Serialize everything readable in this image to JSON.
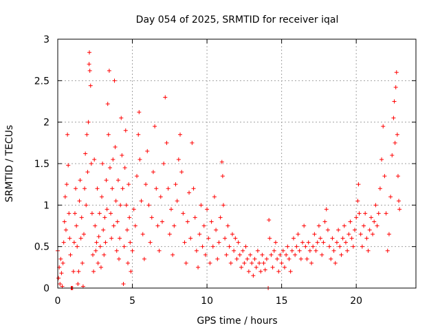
{
  "chart_data": {
    "type": "scatter",
    "title": "Day 054 of 2025, SRMTID for receiver iqal",
    "xlabel": "GPS time / hours",
    "ylabel": "SRMTID / TECUs",
    "xlim": [
      0,
      24
    ],
    "ylim": [
      0,
      3
    ],
    "xticks": [
      0,
      5,
      10,
      15,
      20
    ],
    "xtick_labels": [
      "0",
      "5",
      "10",
      "15",
      "20"
    ],
    "yticks": [
      0,
      0.5,
      1,
      1.5,
      2,
      2.5,
      3
    ],
    "ytick_labels": [
      "0",
      "0.5",
      "1",
      "1.5",
      "2",
      "2.5",
      "3"
    ],
    "grid": true,
    "marker": "plus",
    "series": [
      {
        "name": "SRMTID",
        "color": "#ff0000",
        "points": [
          [
            0.0,
            0.45
          ],
          [
            0.05,
            0.12
          ],
          [
            0.1,
            0.25
          ],
          [
            0.15,
            0.05
          ],
          [
            0.2,
            0.35
          ],
          [
            0.25,
            0.18
          ],
          [
            0.3,
            0.02
          ],
          [
            0.35,
            0.3
          ],
          [
            0.4,
            0.55
          ],
          [
            0.45,
            0.8
          ],
          [
            0.5,
            1.1
          ],
          [
            0.55,
            0.7
          ],
          [
            0.6,
            1.25
          ],
          [
            0.65,
            1.85
          ],
          [
            0.7,
            1.48
          ],
          [
            0.75,
            0.9
          ],
          [
            0.8,
            0.6
          ],
          [
            0.85,
            0.4
          ],
          [
            0.9,
            0.0
          ],
          [
            0.95,
            0.0
          ],
          [
            1.0,
            0.0
          ],
          [
            1.05,
            0.2
          ],
          [
            1.1,
            0.55
          ],
          [
            1.15,
            0.9
          ],
          [
            1.2,
            1.2
          ],
          [
            1.25,
            0.75
          ],
          [
            1.3,
            0.5
          ],
          [
            1.35,
            0.05
          ],
          [
            1.4,
            0.2
          ],
          [
            1.45,
            1.05
          ],
          [
            1.5,
            1.3
          ],
          [
            1.55,
            0.6
          ],
          [
            1.6,
            0.85
          ],
          [
            1.65,
            0.3
          ],
          [
            1.7,
            0.02
          ],
          [
            1.75,
            0.65
          ],
          [
            1.8,
            1.2
          ],
          [
            1.85,
            1.62
          ],
          [
            1.9,
            1.0
          ],
          [
            1.95,
            1.85
          ],
          [
            2.0,
            1.4
          ],
          [
            2.05,
            2.0
          ],
          [
            2.1,
            2.7
          ],
          [
            2.12,
            2.84
          ],
          [
            2.15,
            2.62
          ],
          [
            2.2,
            2.44
          ],
          [
            2.25,
            1.5
          ],
          [
            2.3,
            0.9
          ],
          [
            2.35,
            0.4
          ],
          [
            2.4,
            0.2
          ],
          [
            2.45,
            1.55
          ],
          [
            2.5,
            0.75
          ],
          [
            2.55,
            0.45
          ],
          [
            2.6,
            0.55
          ],
          [
            2.65,
            1.2
          ],
          [
            2.7,
            0.3
          ],
          [
            2.75,
            0.62
          ],
          [
            2.8,
            0.9
          ],
          [
            2.85,
            0.5
          ],
          [
            2.9,
            0.25
          ],
          [
            2.95,
            1.1
          ],
          [
            3.0,
            1.5
          ],
          [
            3.05,
            0.7
          ],
          [
            3.1,
            0.4
          ],
          [
            3.15,
            0.85
          ],
          [
            3.2,
            0.55
          ],
          [
            3.25,
            1.3
          ],
          [
            3.3,
            0.95
          ],
          [
            3.35,
            2.22
          ],
          [
            3.4,
            1.85
          ],
          [
            3.45,
            2.62
          ],
          [
            3.5,
            1.45
          ],
          [
            3.55,
            0.9
          ],
          [
            3.6,
            0.6
          ],
          [
            3.65,
            1.2
          ],
          [
            3.7,
            1.55
          ],
          [
            3.75,
            0.75
          ],
          [
            3.8,
            2.5
          ],
          [
            3.85,
            1.7
          ],
          [
            3.9,
            1.05
          ],
          [
            3.95,
            0.45
          ],
          [
            4.0,
            0.8
          ],
          [
            4.05,
            1.3
          ],
          [
            4.1,
            0.35
          ],
          [
            4.15,
            0.6
          ],
          [
            4.2,
            1.0
          ],
          [
            4.25,
            2.05
          ],
          [
            4.3,
            1.6
          ],
          [
            4.35,
            1.2
          ],
          [
            4.4,
            0.05
          ],
          [
            4.45,
            0.5
          ],
          [
            4.5,
            1.45
          ],
          [
            4.55,
            1.9
          ],
          [
            4.6,
            1.0
          ],
          [
            4.65,
            0.7
          ],
          [
            4.7,
            0.3
          ],
          [
            4.75,
            1.25
          ],
          [
            4.8,
            0.85
          ],
          [
            4.85,
            0.55
          ],
          [
            4.9,
            0.2
          ],
          [
            5.0,
            0.45
          ],
          [
            5.1,
            0.95
          ],
          [
            5.2,
            0.75
          ],
          [
            5.3,
            1.35
          ],
          [
            5.4,
            1.85
          ],
          [
            5.45,
            2.12
          ],
          [
            5.5,
            1.55
          ],
          [
            5.6,
            1.05
          ],
          [
            5.7,
            0.65
          ],
          [
            5.8,
            0.35
          ],
          [
            5.9,
            1.25
          ],
          [
            6.0,
            1.65
          ],
          [
            6.1,
            1.0
          ],
          [
            6.2,
            0.55
          ],
          [
            6.3,
            0.85
          ],
          [
            6.4,
            1.4
          ],
          [
            6.5,
            1.95
          ],
          [
            6.6,
            1.2
          ],
          [
            6.7,
            0.75
          ],
          [
            6.8,
            0.45
          ],
          [
            6.9,
            1.1
          ],
          [
            7.0,
            0.8
          ],
          [
            7.1,
            1.5
          ],
          [
            7.2,
            2.3
          ],
          [
            7.3,
            1.75
          ],
          [
            7.4,
            1.2
          ],
          [
            7.5,
            0.65
          ],
          [
            7.6,
            0.95
          ],
          [
            7.7,
            0.4
          ],
          [
            7.8,
            0.75
          ],
          [
            7.9,
            1.25
          ],
          [
            8.0,
            1.05
          ],
          [
            8.1,
            1.55
          ],
          [
            8.2,
            1.85
          ],
          [
            8.3,
            1.4
          ],
          [
            8.4,
            0.9
          ],
          [
            8.5,
            0.55
          ],
          [
            8.6,
            0.3
          ],
          [
            8.7,
            0.8
          ],
          [
            8.8,
            1.15
          ],
          [
            8.9,
            0.6
          ],
          [
            9.0,
            1.75
          ],
          [
            9.1,
            1.2
          ],
          [
            9.2,
            0.85
          ],
          [
            9.3,
            0.45
          ],
          [
            9.4,
            0.25
          ],
          [
            9.5,
            0.65
          ],
          [
            9.6,
            1.0
          ],
          [
            9.7,
            0.5
          ],
          [
            9.8,
            0.75
          ],
          [
            9.9,
            0.4
          ],
          [
            10.0,
            0.95
          ],
          [
            10.1,
            0.6
          ],
          [
            10.2,
            0.3
          ],
          [
            10.3,
            0.8
          ],
          [
            10.4,
            0.5
          ],
          [
            10.5,
            1.1
          ],
          [
            10.6,
            0.7
          ],
          [
            10.7,
            0.35
          ],
          [
            10.8,
            0.55
          ],
          [
            10.9,
            0.85
          ],
          [
            11.0,
            1.52
          ],
          [
            11.05,
            1.35
          ],
          [
            11.1,
            1.0
          ],
          [
            11.2,
            0.6
          ],
          [
            11.3,
            0.4
          ],
          [
            11.4,
            0.75
          ],
          [
            11.5,
            0.5
          ],
          [
            11.6,
            0.3
          ],
          [
            11.7,
            0.65
          ],
          [
            11.8,
            0.45
          ],
          [
            11.9,
            0.6
          ],
          [
            12.0,
            0.35
          ],
          [
            12.1,
            0.55
          ],
          [
            12.2,
            0.4
          ],
          [
            12.3,
            0.25
          ],
          [
            12.4,
            0.45
          ],
          [
            12.5,
            0.3
          ],
          [
            12.6,
            0.5
          ],
          [
            12.7,
            0.35
          ],
          [
            12.8,
            0.2
          ],
          [
            12.9,
            0.4
          ],
          [
            13.0,
            0.3
          ],
          [
            13.1,
            0.15
          ],
          [
            13.2,
            0.35
          ],
          [
            13.3,
            0.25
          ],
          [
            13.4,
            0.45
          ],
          [
            13.5,
            0.3
          ],
          [
            13.6,
            0.2
          ],
          [
            13.7,
            0.4
          ],
          [
            13.8,
            0.3
          ],
          [
            13.9,
            0.22
          ],
          [
            14.0,
            0.35
          ],
          [
            14.1,
            0.0
          ],
          [
            14.15,
            0.82
          ],
          [
            14.2,
            0.6
          ],
          [
            14.3,
            0.4
          ],
          [
            14.4,
            0.25
          ],
          [
            14.5,
            0.45
          ],
          [
            14.6,
            0.55
          ],
          [
            14.7,
            0.35
          ],
          [
            14.8,
            0.2
          ],
          [
            14.9,
            0.4
          ],
          [
            15.0,
            0.3
          ],
          [
            15.1,
            0.45
          ],
          [
            15.2,
            0.25
          ],
          [
            15.3,
            0.4
          ],
          [
            15.4,
            0.5
          ],
          [
            15.5,
            0.35
          ],
          [
            15.6,
            0.2
          ],
          [
            15.7,
            0.45
          ],
          [
            15.8,
            0.6
          ],
          [
            15.9,
            0.4
          ],
          [
            16.0,
            0.5
          ],
          [
            16.1,
            0.65
          ],
          [
            16.2,
            0.45
          ],
          [
            16.3,
            0.35
          ],
          [
            16.4,
            0.55
          ],
          [
            16.5,
            0.75
          ],
          [
            16.6,
            0.5
          ],
          [
            16.7,
            0.35
          ],
          [
            16.8,
            0.55
          ],
          [
            16.9,
            0.45
          ],
          [
            17.0,
            0.3
          ],
          [
            17.1,
            0.5
          ],
          [
            17.2,
            0.65
          ],
          [
            17.3,
            0.45
          ],
          [
            17.4,
            0.55
          ],
          [
            17.5,
            0.75
          ],
          [
            17.6,
            0.6
          ],
          [
            17.7,
            0.4
          ],
          [
            17.8,
            0.55
          ],
          [
            17.9,
            0.8
          ],
          [
            18.0,
            0.95
          ],
          [
            18.1,
            0.7
          ],
          [
            18.2,
            0.5
          ],
          [
            18.3,
            0.35
          ],
          [
            18.4,
            0.6
          ],
          [
            18.5,
            0.45
          ],
          [
            18.6,
            0.3
          ],
          [
            18.7,
            0.55
          ],
          [
            18.8,
            0.7
          ],
          [
            18.9,
            0.5
          ],
          [
            19.0,
            0.4
          ],
          [
            19.1,
            0.6
          ],
          [
            19.2,
            0.75
          ],
          [
            19.3,
            0.55
          ],
          [
            19.4,
            0.45
          ],
          [
            19.5,
            0.65
          ],
          [
            19.6,
            0.8
          ],
          [
            19.7,
            0.6
          ],
          [
            19.8,
            0.5
          ],
          [
            19.9,
            0.7
          ],
          [
            20.0,
            0.85
          ],
          [
            20.1,
            1.05
          ],
          [
            20.15,
            1.25
          ],
          [
            20.2,
            0.9
          ],
          [
            20.3,
            0.65
          ],
          [
            20.4,
            0.5
          ],
          [
            20.5,
            0.75
          ],
          [
            20.6,
            0.9
          ],
          [
            20.7,
            0.6
          ],
          [
            20.8,
            0.45
          ],
          [
            20.9,
            0.7
          ],
          [
            21.0,
            0.85
          ],
          [
            21.1,
            0.65
          ],
          [
            21.2,
            0.8
          ],
          [
            21.3,
            1.0
          ],
          [
            21.4,
            0.75
          ],
          [
            21.5,
            0.9
          ],
          [
            21.6,
            1.2
          ],
          [
            21.7,
            1.55
          ],
          [
            21.8,
            1.95
          ],
          [
            21.9,
            1.35
          ],
          [
            22.0,
            0.9
          ],
          [
            22.1,
            0.45
          ],
          [
            22.2,
            0.65
          ],
          [
            22.3,
            1.1
          ],
          [
            22.4,
            1.6
          ],
          [
            22.5,
            2.05
          ],
          [
            22.55,
            2.25
          ],
          [
            22.6,
            1.75
          ],
          [
            22.65,
            2.42
          ],
          [
            22.7,
            2.6
          ],
          [
            22.75,
            1.85
          ],
          [
            22.8,
            1.35
          ],
          [
            22.85,
            1.05
          ],
          [
            22.9,
            0.95
          ]
        ]
      }
    ]
  }
}
